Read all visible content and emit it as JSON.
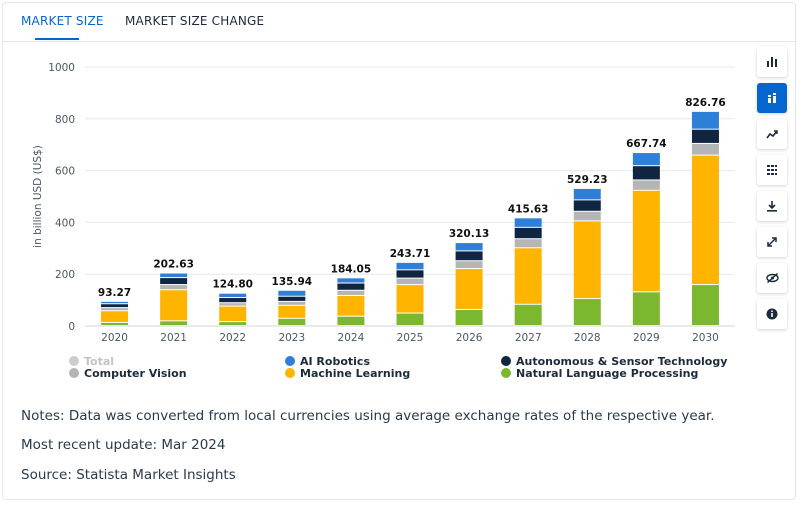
{
  "tabs": [
    {
      "label": "MARKET SIZE",
      "active": true
    },
    {
      "label": "MARKET SIZE CHANGE",
      "active": false
    }
  ],
  "toolbar": [
    {
      "icon": "bar-chart-icon",
      "active": false
    },
    {
      "icon": "stacked-chart-icon",
      "active": true
    },
    {
      "icon": "line-chart-icon",
      "active": false
    },
    {
      "icon": "table-icon",
      "active": false
    },
    {
      "icon": "download-icon",
      "active": false
    },
    {
      "icon": "expand-icon",
      "active": false
    },
    {
      "icon": "hide-icon",
      "active": false
    },
    {
      "icon": "info-icon",
      "active": false
    }
  ],
  "chart_data": {
    "type": "bar",
    "stacked": true,
    "ylabel": "in billion USD (US$)",
    "ylim": [
      0,
      1000
    ],
    "yticks": [
      0,
      200,
      400,
      600,
      800,
      1000
    ],
    "categories": [
      "2020",
      "2021",
      "2022",
      "2023",
      "2024",
      "2025",
      "2026",
      "2027",
      "2028",
      "2029",
      "2030"
    ],
    "totals_labels": [
      "93.27",
      "202.63",
      "124.80",
      "135.94",
      "184.05",
      "243.71",
      "320.13",
      "415.63",
      "529.23",
      "667.74",
      "826.76"
    ],
    "totals": [
      93.27,
      202.63,
      124.8,
      135.94,
      184.05,
      243.71,
      320.13,
      415.63,
      529.23,
      667.74,
      826.76
    ],
    "series": [
      {
        "name": "Natural Language Processing",
        "color": "#7cb82f",
        "values": [
          12,
          18,
          15,
          28,
          36,
          48,
          62,
          82,
          104,
          130,
          158
        ]
      },
      {
        "name": "Machine Learning",
        "color": "#ffb400",
        "values": [
          45,
          120,
          60,
          50,
          80,
          110,
          158,
          218,
          300,
          392,
          500
        ]
      },
      {
        "name": "Computer Vision",
        "color": "#b5b5b5",
        "values": [
          12,
          20,
          13,
          15,
          20,
          25,
          30,
          35,
          37,
          40,
          45
        ]
      },
      {
        "name": "Autonomous & Sensor Technology",
        "color": "#0f2541",
        "values": [
          15,
          27,
          20,
          20,
          28,
          32,
          38,
          44,
          44,
          55,
          55
        ]
      },
      {
        "name": "AI Robotics",
        "color": "#2f7ed8",
        "values": [
          9.27,
          17.63,
          16.8,
          22.94,
          20.05,
          28.71,
          32.13,
          36.63,
          44.23,
          50.74,
          68.76
        ]
      }
    ],
    "legend": [
      {
        "name": "Total",
        "color": "#cccccc",
        "muted": true
      },
      {
        "name": "AI Robotics",
        "color": "#2f7ed8"
      },
      {
        "name": "Autonomous & Sensor Technology",
        "color": "#0f2541"
      },
      {
        "name": "Computer Vision",
        "color": "#b5b5b5"
      },
      {
        "name": "Machine Learning",
        "color": "#ffb400"
      },
      {
        "name": "Natural Language Processing",
        "color": "#7cb82f"
      }
    ],
    "grid": true,
    "legend_position": "bottom"
  },
  "notes": {
    "line1": "Notes: Data was converted from local currencies using average exchange rates of the respective year.",
    "line2": "Most recent update: Mar 2024",
    "line3": "Source: Statista Market Insights"
  }
}
